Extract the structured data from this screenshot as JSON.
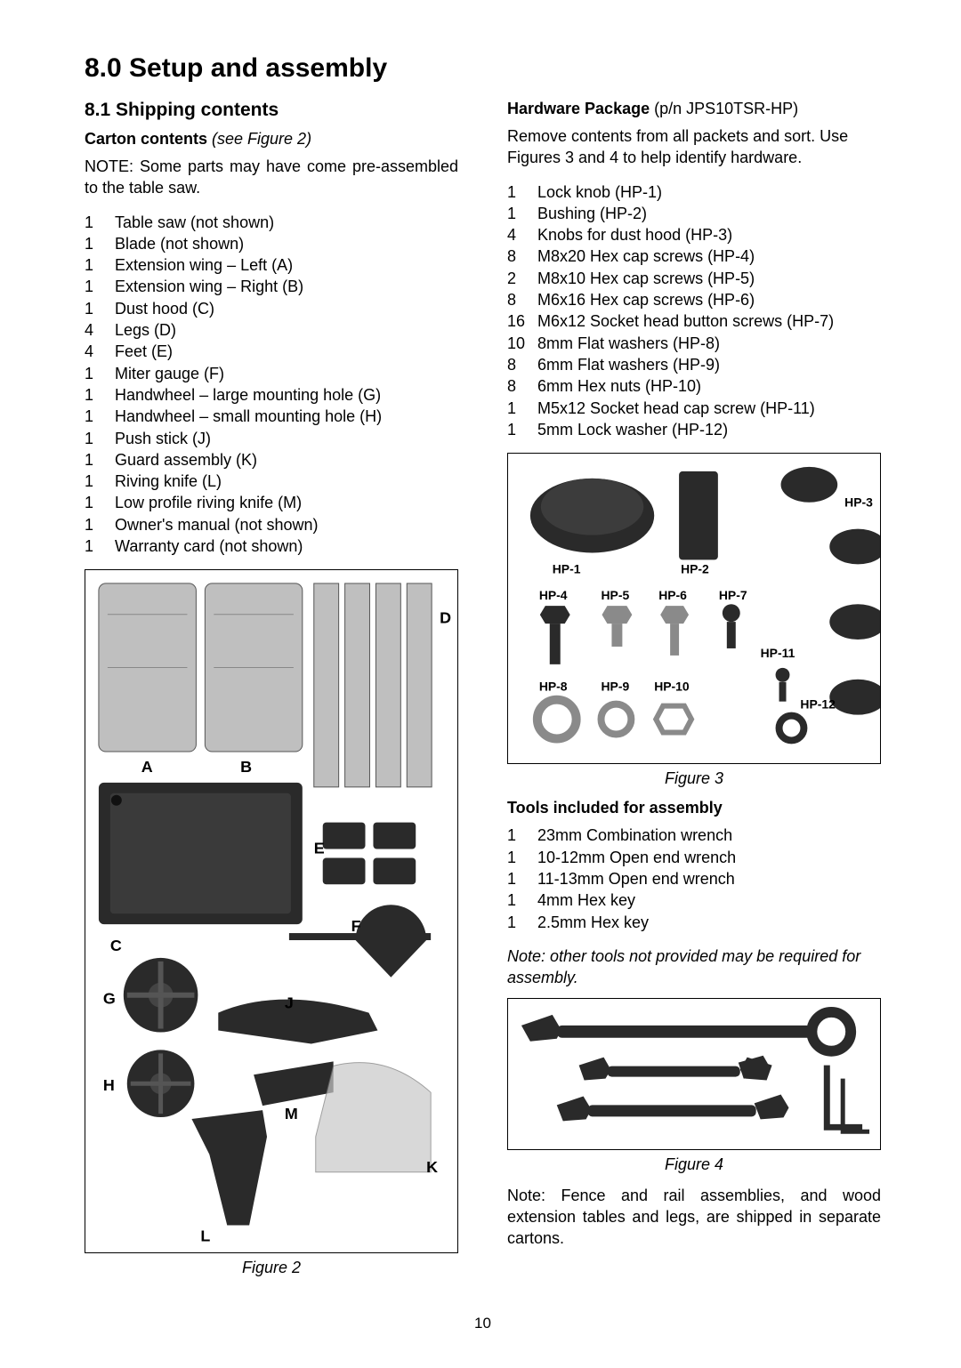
{
  "main_heading": "8.0  Setup and assembly",
  "sub_heading": "8.1  Shipping contents",
  "page_number": "10",
  "left": {
    "carton_label_bold": "Carton contents",
    "carton_label_ital": " (see Figure 2)",
    "note_text": "NOTE: Some parts may have come pre-assembled to the table saw.",
    "carton_items": [
      {
        "qty": "1",
        "desc": "Table saw (not shown)"
      },
      {
        "qty": "1",
        "desc": "Blade (not shown)"
      },
      {
        "qty": "1",
        "desc": "Extension wing – Left (A)"
      },
      {
        "qty": "1",
        "desc": "Extension wing – Right (B)"
      },
      {
        "qty": "1",
        "desc": "Dust hood (C)"
      },
      {
        "qty": "4",
        "desc": "Legs (D)"
      },
      {
        "qty": "4",
        "desc": "Feet (E)"
      },
      {
        "qty": "1",
        "desc": "Miter gauge (F)"
      },
      {
        "qty": "1",
        "desc": "Handwheel – large mounting hole (G)"
      },
      {
        "qty": "1",
        "desc": "Handwheel – small mounting hole (H)"
      },
      {
        "qty": "1",
        "desc": "Push stick (J)"
      },
      {
        "qty": "1",
        "desc": "Guard assembly (K)"
      },
      {
        "qty": "1",
        "desc": "Riving knife (L)"
      },
      {
        "qty": "1",
        "desc": "Low profile riving knife (M)"
      },
      {
        "qty": "1",
        "desc": "Owner's manual (not shown)"
      },
      {
        "qty": "1",
        "desc": "Warranty card (not shown)"
      }
    ],
    "fig2_caption": "Figure 2",
    "fig2_labels": [
      "A",
      "B",
      "C",
      "D",
      "E",
      "F",
      "G",
      "H",
      "J",
      "K",
      "L",
      "M"
    ]
  },
  "right": {
    "hw_label_bold": "Hardware Package",
    "hw_label_rest": " (p/n JPS10TSR-HP)",
    "hw_intro": "Remove contents from all packets and sort. Use Figures 3 and 4 to help identify hardware.",
    "hw_items": [
      {
        "qty": "1",
        "desc": "Lock knob (HP-1)"
      },
      {
        "qty": "1",
        "desc": "Bushing (HP-2)"
      },
      {
        "qty": "4",
        "desc": "Knobs for dust hood (HP-3)"
      },
      {
        "qty": "8",
        "desc": "M8x20 Hex cap screws (HP-4)"
      },
      {
        "qty": "2",
        "desc": "M8x10 Hex cap screws (HP-5)"
      },
      {
        "qty": "8",
        "desc": "M6x16 Hex cap screws (HP-6)"
      },
      {
        "qty": "16",
        "desc": "M6x12 Socket head button screws (HP-7)"
      },
      {
        "qty": "10",
        "desc": "8mm Flat washers (HP-8)"
      },
      {
        "qty": "8",
        "desc": "6mm Flat washers (HP-9)"
      },
      {
        "qty": "8",
        "desc": "6mm Hex nuts (HP-10)"
      },
      {
        "qty": "1",
        "desc": "M5x12 Socket head cap screw (HP-11)"
      },
      {
        "qty": "1",
        "desc": "5mm Lock washer (HP-12)"
      }
    ],
    "fig3_caption": "Figure 3",
    "fig3_labels": [
      "HP-1",
      "HP-2",
      "HP-3",
      "HP-4",
      "HP-5",
      "HP-6",
      "HP-7",
      "HP-8",
      "HP-9",
      "HP-10",
      "HP-11",
      "HP-12"
    ],
    "tools_heading": "Tools included for assembly",
    "tools_items": [
      {
        "qty": "1",
        "desc": "23mm Combination wrench"
      },
      {
        "qty": "1",
        "desc": "10-12mm Open end wrench"
      },
      {
        "qty": "1",
        "desc": "11-13mm Open end wrench"
      },
      {
        "qty": "1",
        "desc": "4mm Hex key"
      },
      {
        "qty": "1",
        "desc": "2.5mm Hex key"
      }
    ],
    "tools_note": "Note: other tools not provided may be required for assembly.",
    "fig4_caption": "Figure 4",
    "final_note": "Note: Fence and rail assemblies, and wood extension tables and legs, are shipped in separate cartons."
  },
  "colors": {
    "text": "#000000",
    "bg": "#ffffff",
    "border": "#000000",
    "part_light": "#bfbfbf",
    "part_mid": "#8a8a8a",
    "part_dark": "#2a2a2a"
  }
}
